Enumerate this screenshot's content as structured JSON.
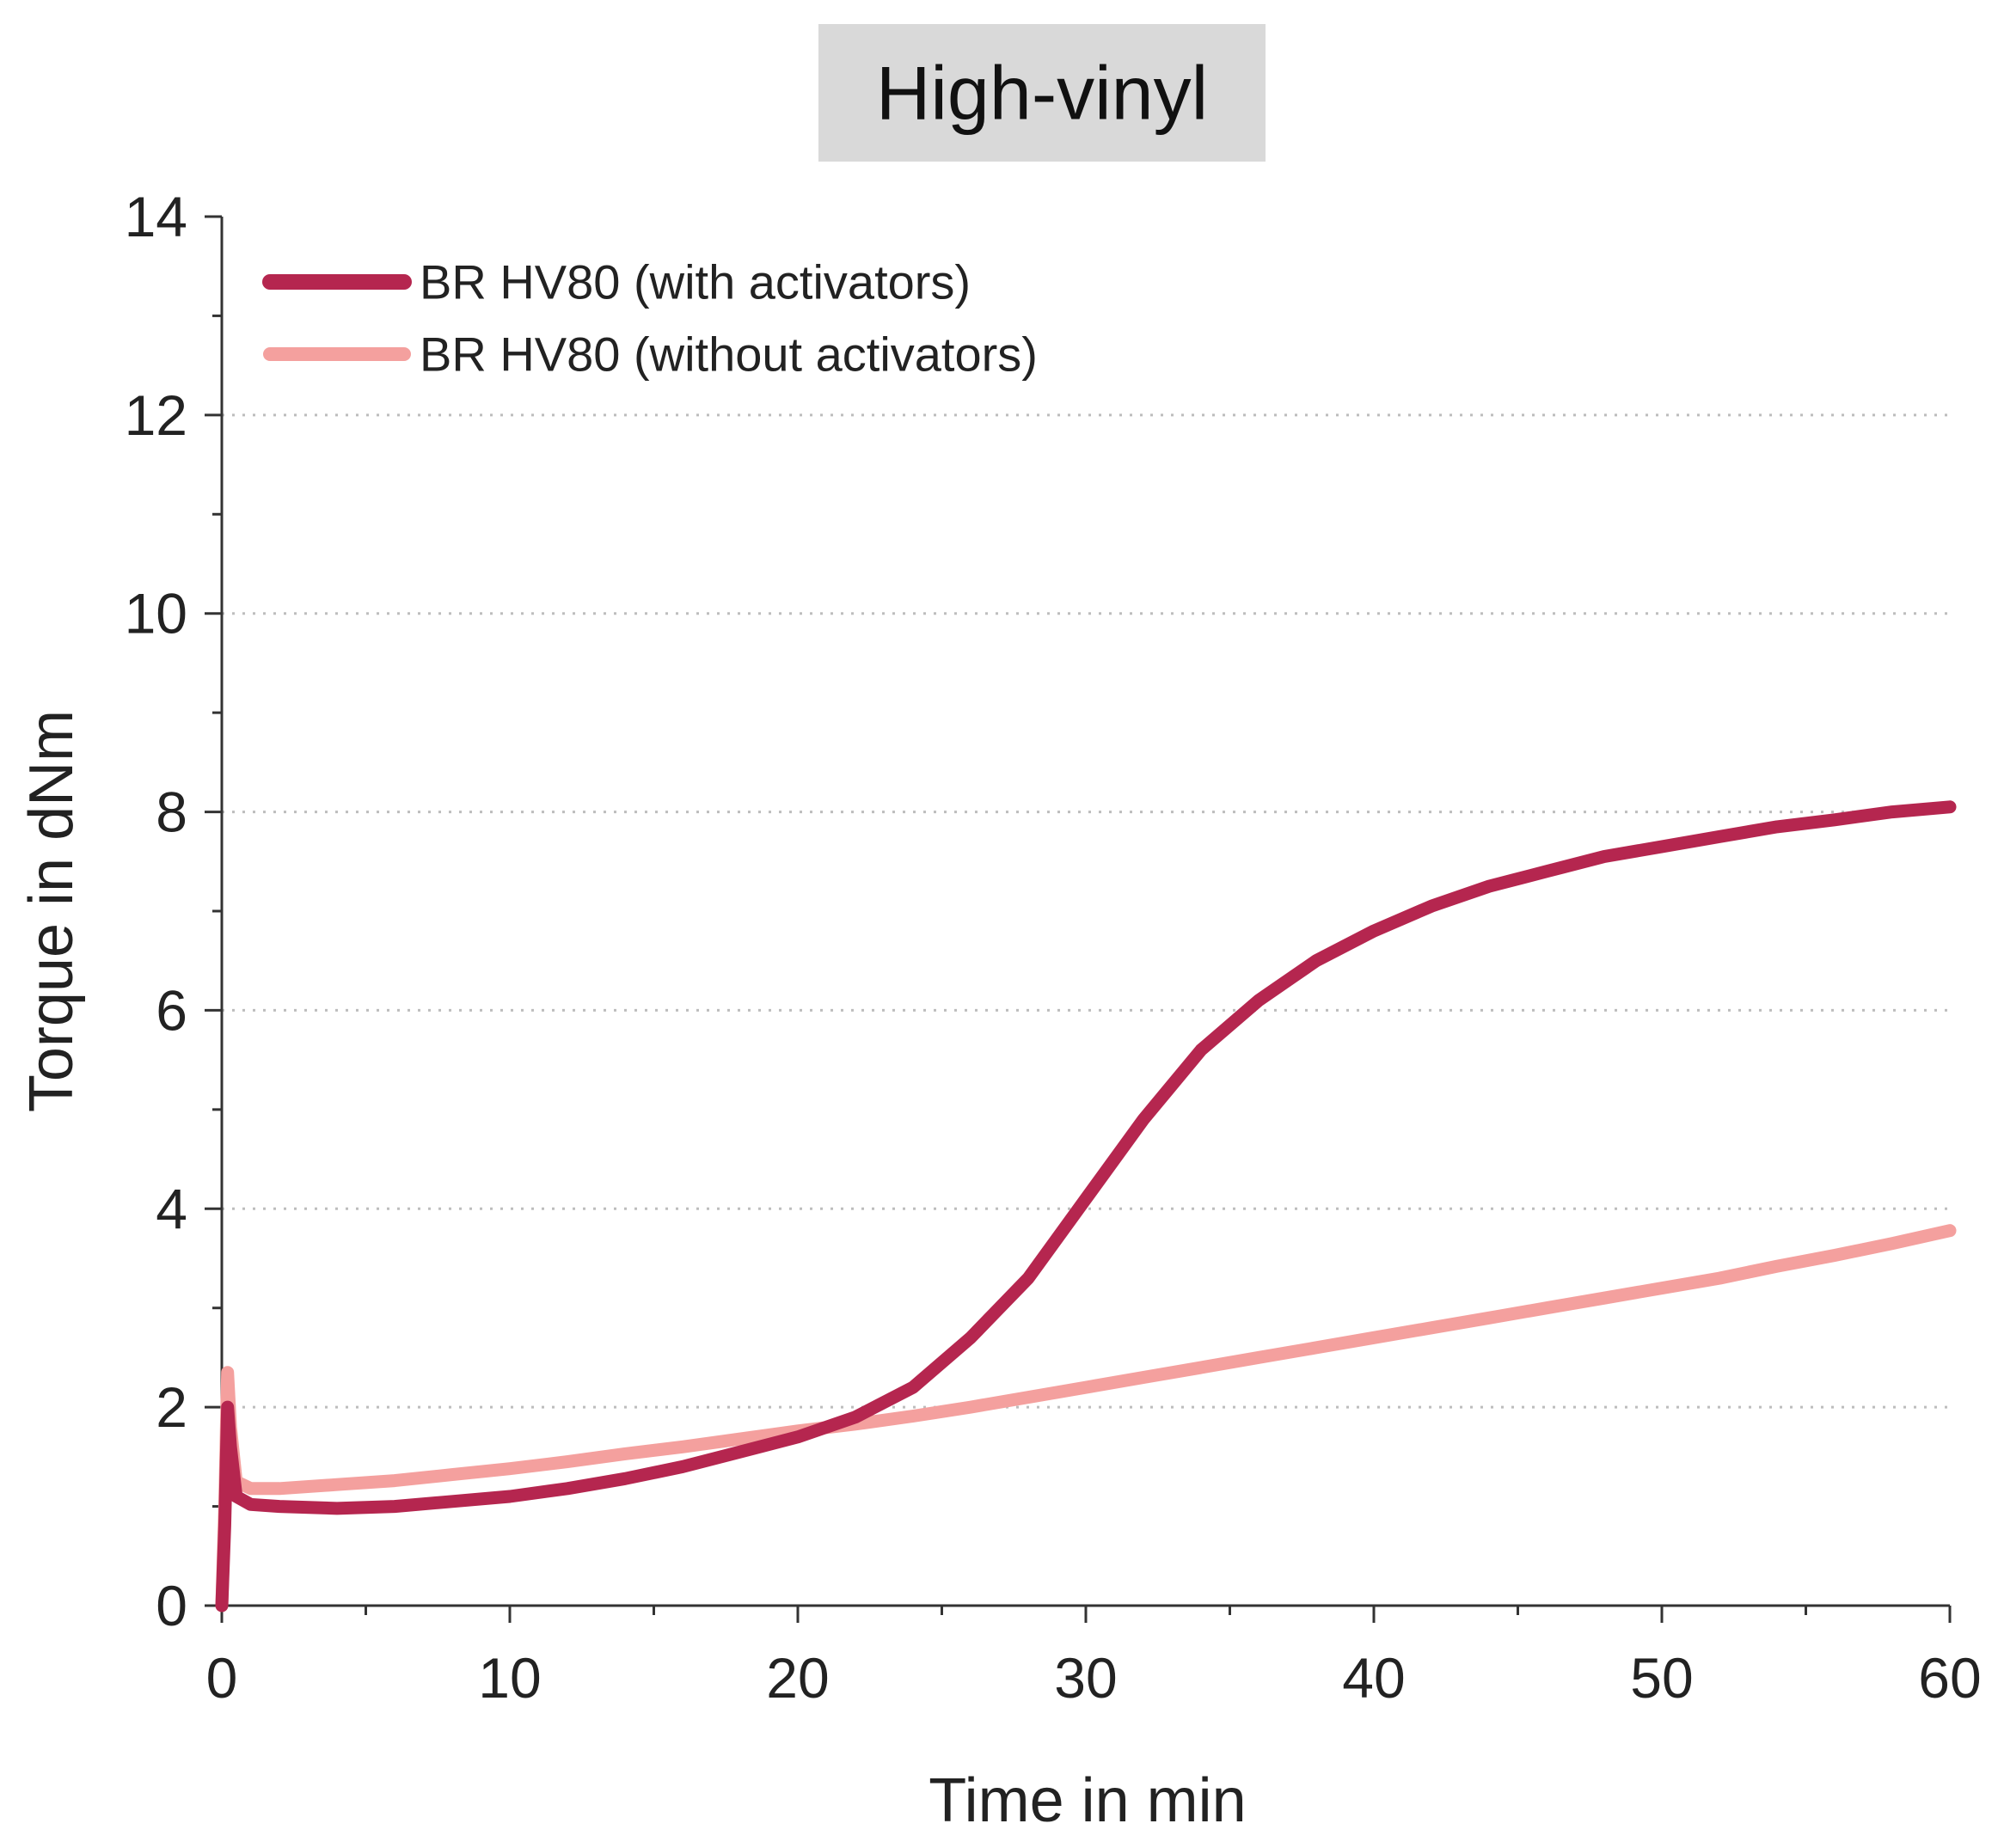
{
  "chart_data": {
    "type": "line",
    "title": "High-vinyl",
    "xlabel": "Time in min",
    "ylabel": "Torque in dNm",
    "xlim": [
      0,
      60
    ],
    "ylim": [
      0,
      14
    ],
    "xticks": [
      0,
      10,
      20,
      30,
      40,
      50,
      60
    ],
    "yticks": [
      0,
      2,
      4,
      6,
      8,
      10,
      12,
      14
    ],
    "grid": "horizontal dotted",
    "legend_position": "top-left",
    "series": [
      {
        "name": "BR HV80 (with activators)",
        "color": "#b5264f",
        "x": [
          0,
          0.1,
          0.2,
          0.3,
          0.5,
          1,
          2,
          4,
          6,
          8,
          10,
          12,
          14,
          16,
          18,
          20,
          22,
          24,
          26,
          28,
          30,
          32,
          34,
          36,
          38,
          40,
          42,
          44,
          46,
          48,
          50,
          52,
          54,
          56,
          58,
          60
        ],
        "y": [
          0,
          0.8,
          2.0,
          1.6,
          1.1,
          1.02,
          1.0,
          0.98,
          1.0,
          1.05,
          1.1,
          1.18,
          1.28,
          1.4,
          1.55,
          1.7,
          1.9,
          2.2,
          2.7,
          3.3,
          4.1,
          4.9,
          5.6,
          6.1,
          6.5,
          6.8,
          7.05,
          7.25,
          7.4,
          7.55,
          7.65,
          7.75,
          7.85,
          7.92,
          8.0,
          8.05
        ]
      },
      {
        "name": "BR HV80 (without activators)",
        "color": "#f4a09e",
        "x": [
          0,
          0.1,
          0.2,
          0.3,
          0.5,
          1,
          2,
          4,
          6,
          8,
          10,
          12,
          14,
          16,
          18,
          20,
          22,
          24,
          26,
          28,
          30,
          32,
          34,
          36,
          38,
          40,
          42,
          44,
          46,
          48,
          50,
          52,
          54,
          56,
          58,
          60
        ],
        "y": [
          0,
          1.0,
          2.35,
          1.8,
          1.25,
          1.18,
          1.18,
          1.22,
          1.26,
          1.32,
          1.38,
          1.45,
          1.53,
          1.6,
          1.68,
          1.76,
          1.83,
          1.91,
          2.0,
          2.1,
          2.2,
          2.3,
          2.4,
          2.5,
          2.6,
          2.7,
          2.8,
          2.9,
          3.0,
          3.1,
          3.2,
          3.3,
          3.42,
          3.53,
          3.65,
          3.78
        ]
      }
    ]
  }
}
